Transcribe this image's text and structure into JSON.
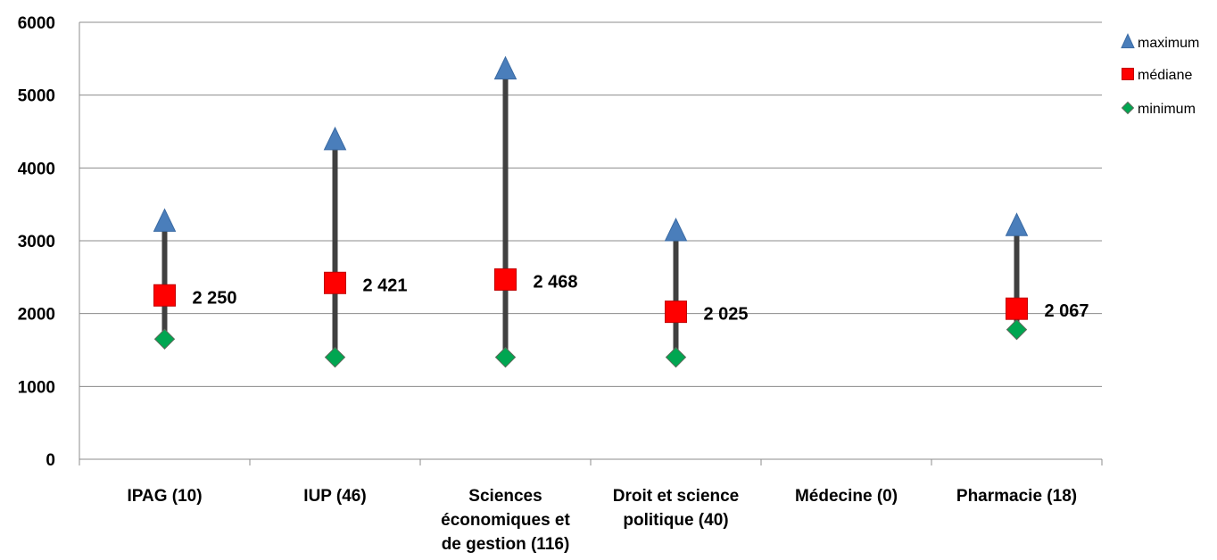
{
  "chart_data": {
    "type": "high-low",
    "categories": [
      [
        "IPAG (10)"
      ],
      [
        "IUP (46)"
      ],
      [
        "Sciences",
        "économiques et",
        "de gestion (116)"
      ],
      [
        "Droit et science",
        "politique (40)"
      ],
      [
        "Médecine (0)"
      ],
      [
        "Pharmacie (18)"
      ]
    ],
    "series": [
      {
        "name": "maximum",
        "values": [
          3270,
          4390,
          5360,
          3140,
          null,
          3210
        ],
        "color": "#4a7ebb",
        "marker": "triangle"
      },
      {
        "name": "médiane",
        "values": [
          2250,
          2421,
          2468,
          2025,
          null,
          2067
        ],
        "color": "#ff0000",
        "marker": "square"
      },
      {
        "name": "minimum",
        "values": [
          1650,
          1400,
          1400,
          1400,
          null,
          1780
        ],
        "color": "#00a651",
        "marker": "diamond"
      }
    ],
    "data_labels": [
      "2 250",
      "2 421",
      "2 468",
      "2 025",
      "",
      "2 067"
    ],
    "y_ticks": [
      "0",
      "1000",
      "2000",
      "3000",
      "4000",
      "5000",
      "6000"
    ],
    "ylim": [
      0,
      6000
    ],
    "grid": true,
    "legend_position": "top-right",
    "range_line_color": "#404040"
  }
}
